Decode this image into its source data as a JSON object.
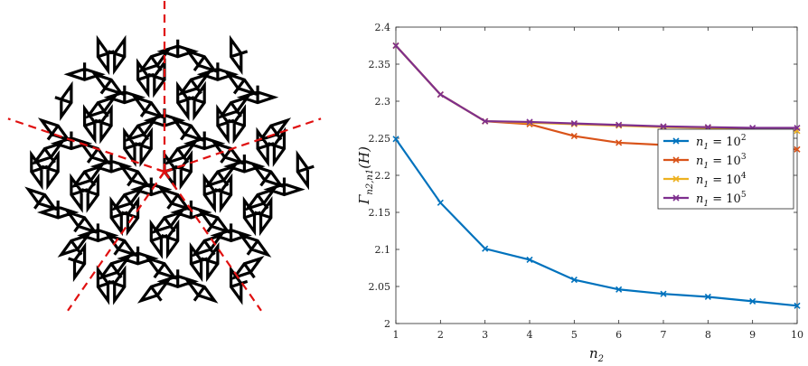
{
  "colors": {
    "tile_stroke": "#000000",
    "symmetry_axis": "#e01010",
    "series": [
      "#0072BD",
      "#D95319",
      "#EDB120",
      "#7E2F8E"
    ]
  },
  "tiling": {
    "description_icon": "rhombus-tiling-icon",
    "symmetry_axes": 5
  },
  "chart_data": {
    "type": "line",
    "title": "",
    "xlabel": "n",
    "xlabel_sub": "2",
    "ylabel": "Γ",
    "ylabel_sub": "n2,n1",
    "ylabel_arg": "(H)",
    "xlim": [
      1,
      10
    ],
    "ylim": [
      2,
      2.4
    ],
    "xticks": [
      "1",
      "2",
      "3",
      "4",
      "5",
      "6",
      "7",
      "8",
      "9",
      "10"
    ],
    "yticks": [
      "2",
      "2.05",
      "2.1",
      "2.15",
      "2.2",
      "2.25",
      "2.3",
      "2.35",
      "2.4"
    ],
    "grid": false,
    "legend_position": "right",
    "marker": "x",
    "x": [
      1,
      2,
      3,
      4,
      5,
      6,
      7,
      8,
      9,
      10
    ],
    "series": [
      {
        "name": "n1 = 10^2",
        "base": "n",
        "sub": "1",
        "exp": "2",
        "values": [
          2.249,
          2.163,
          2.101,
          2.086,
          2.059,
          2.046,
          2.04,
          2.036,
          2.03,
          2.024
        ]
      },
      {
        "name": "n1 = 10^3",
        "base": "n",
        "sub": "1",
        "exp": "3",
        "values": [
          2.375,
          2.309,
          2.273,
          2.269,
          2.253,
          2.244,
          2.241,
          2.237,
          2.236,
          2.235
        ]
      },
      {
        "name": "n1 = 10^4",
        "base": "n",
        "sub": "1",
        "exp": "4",
        "values": [
          2.375,
          2.309,
          2.273,
          2.271,
          2.269,
          2.267,
          2.265,
          2.264,
          2.261,
          2.26
        ]
      },
      {
        "name": "n1 = 10^5",
        "base": "n",
        "sub": "1",
        "exp": "5",
        "values": [
          2.375,
          2.309,
          2.273,
          2.272,
          2.27,
          2.268,
          2.266,
          2.265,
          2.264,
          2.264
        ]
      }
    ]
  }
}
